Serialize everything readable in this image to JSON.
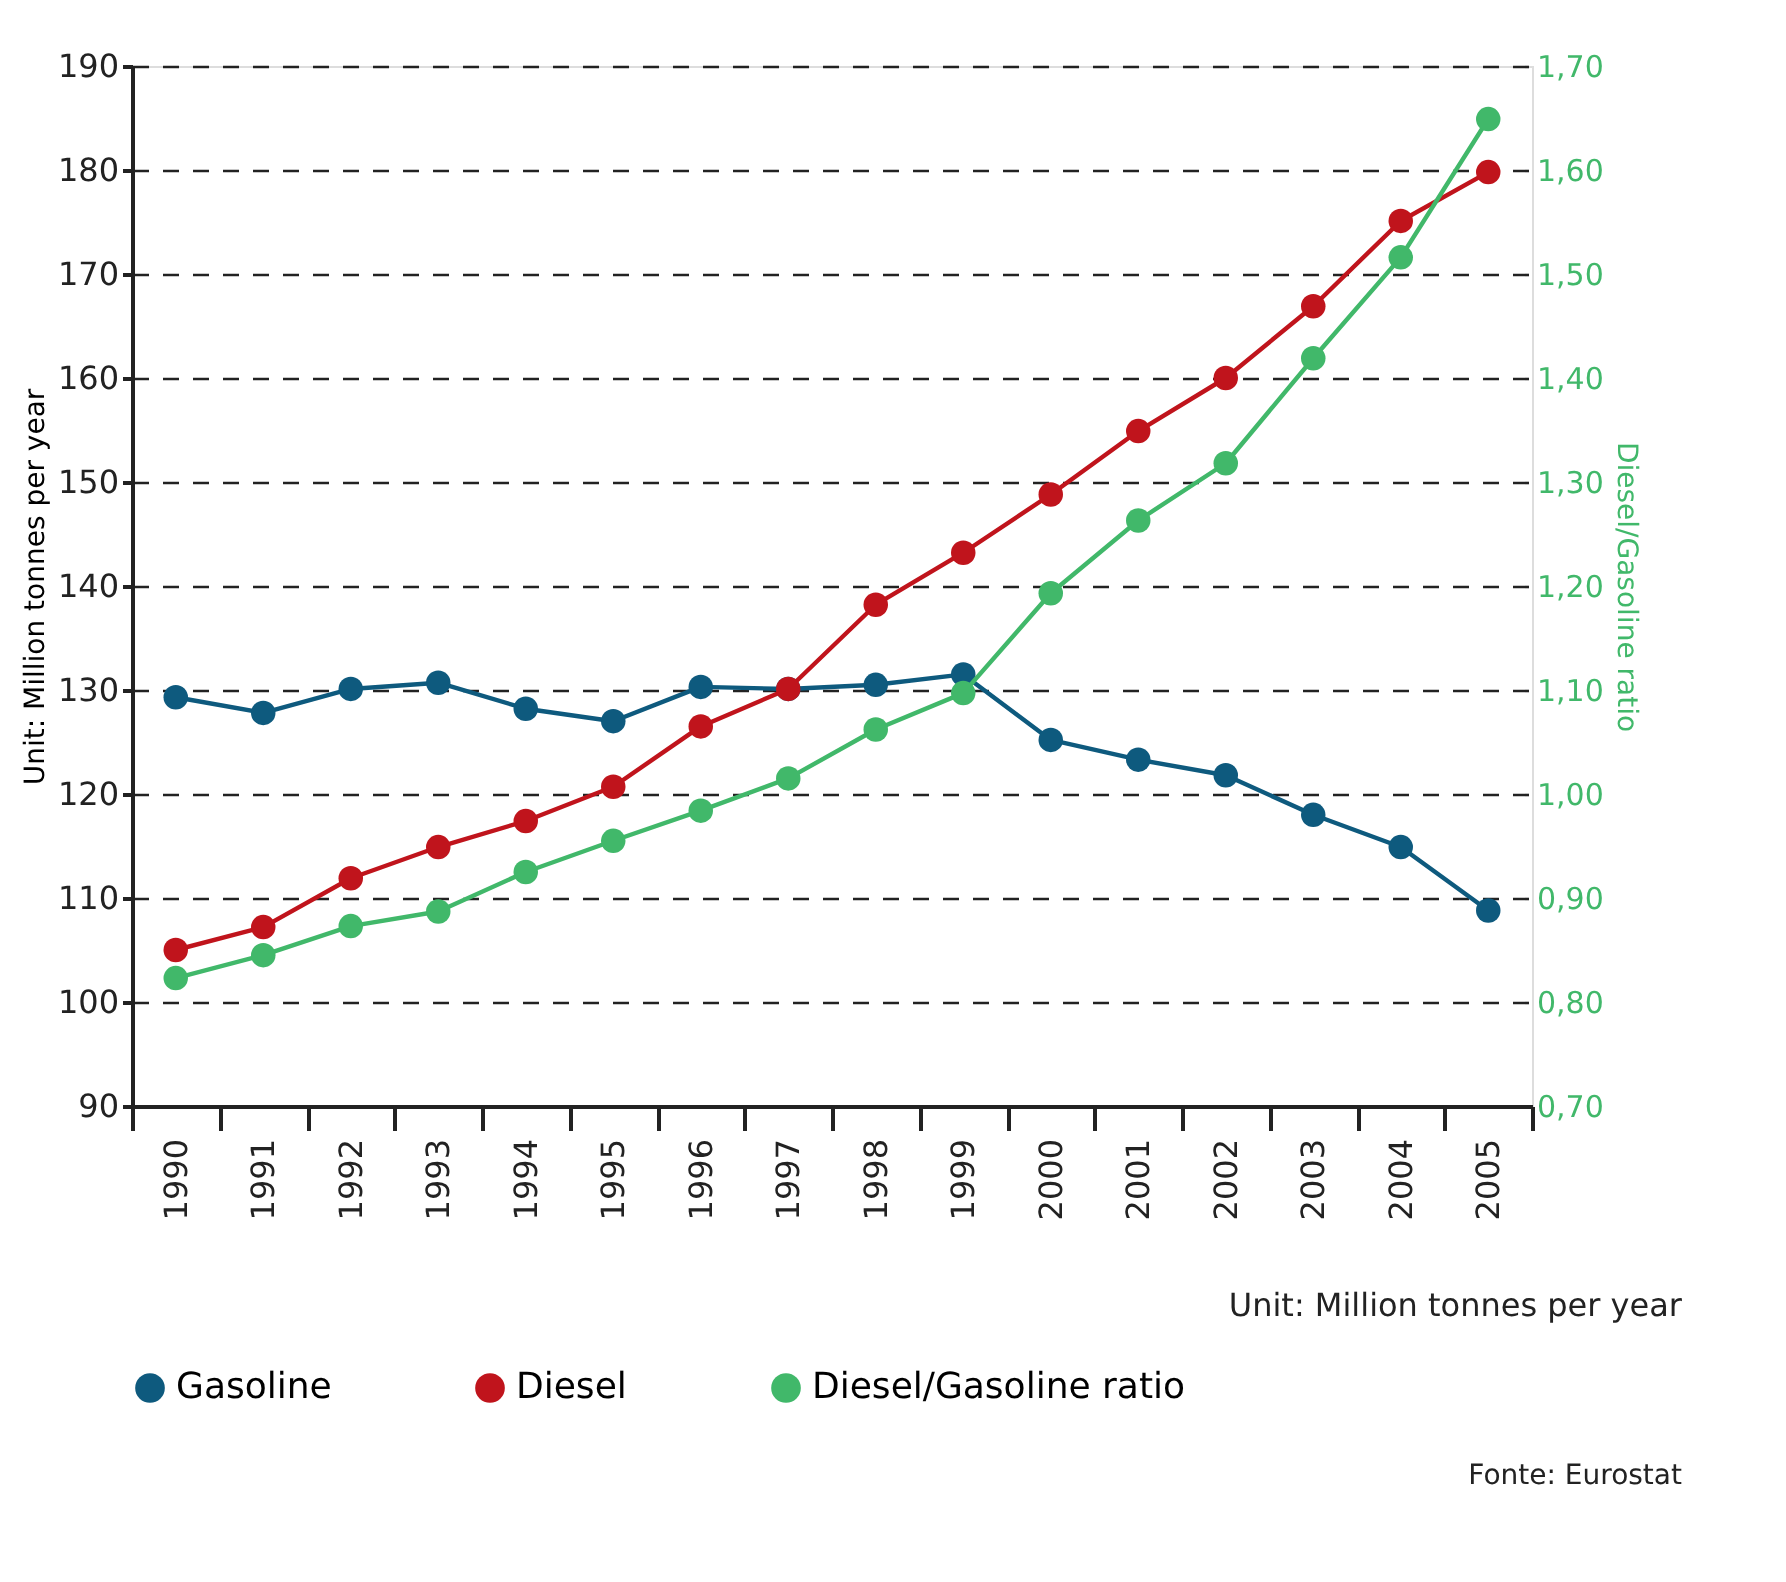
{
  "chart_data": {
    "type": "line",
    "ylabel": "Unit: Million tonnes per year",
    "y2label": "Diesel/Gasoline ratio",
    "categories": [
      "1990",
      "1991",
      "1992",
      "1993",
      "1994",
      "1995",
      "1996",
      "1997",
      "1998",
      "1999",
      "2000",
      "2001",
      "2002",
      "2003",
      "2004",
      "2005"
    ],
    "series": [
      {
        "name": "Gasoline",
        "color": "#0e5a7e",
        "values": [
          129.3,
          127.8,
          130.1,
          130.7,
          128.2,
          127.0,
          130.3,
          130.1,
          130.5,
          131.5,
          125.2,
          123.3,
          121.8,
          118.0,
          114.9,
          108.8
        ]
      },
      {
        "name": "Diesel",
        "color": "#c0141c",
        "values": [
          105.0,
          107.2,
          111.9,
          114.9,
          117.4,
          120.7,
          126.5,
          130.1,
          138.2,
          143.2,
          148.8,
          154.9,
          160.0,
          166.9,
          175.1,
          179.8
        ]
      },
      {
        "name": "Diesel/Gasoline ratio",
        "color": "#41b86a",
        "axis": "y2",
        "values": [
          0.823,
          0.845,
          0.873,
          0.887,
          0.925,
          0.955,
          0.984,
          1.015,
          1.062,
          1.097,
          1.193,
          1.263,
          1.318,
          1.419,
          1.516,
          1.649
        ]
      }
    ],
    "ylim": [
      90,
      190
    ],
    "yticks": [
      90,
      100,
      110,
      120,
      130,
      140,
      150,
      160,
      170,
      180,
      190
    ],
    "y2lim": [
      0.7,
      1.7
    ],
    "y2ticks": [
      {
        "value": 0.7,
        "label": "0,70"
      },
      {
        "value": 0.8,
        "label": "0,80"
      },
      {
        "value": 0.9,
        "label": "0,90"
      },
      {
        "value": 1.0,
        "label": "1,00"
      },
      {
        "value": 1.1,
        "label": "1,10"
      },
      {
        "value": 1.2,
        "label": "1,20"
      },
      {
        "value": 1.3,
        "label": "1,30"
      },
      {
        "value": 1.4,
        "label": "1,40"
      },
      {
        "value": 1.5,
        "label": "1,50"
      },
      {
        "value": 1.6,
        "label": "1,60"
      },
      {
        "value": 1.7,
        "label": "1,70"
      }
    ],
    "grid": "y",
    "legend": "bottom",
    "marker": "circle",
    "line_style": "solid",
    "annotations": [
      "Unit: Million tonnes per year",
      "Fonte: Eurostat"
    ]
  }
}
